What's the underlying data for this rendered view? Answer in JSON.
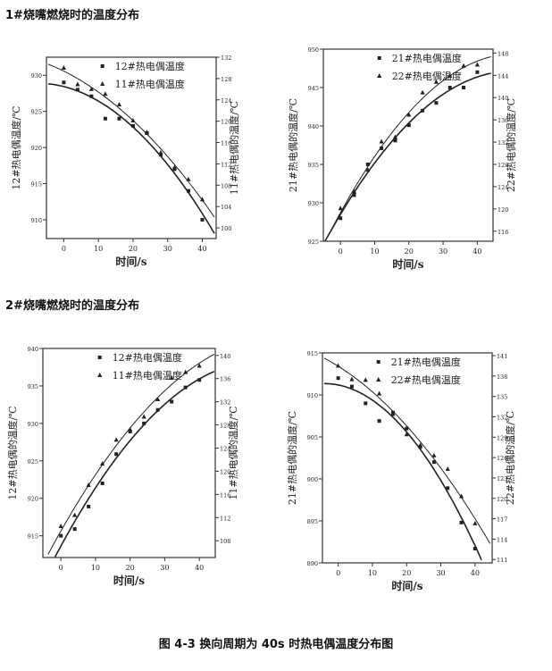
{
  "section1_title": "1#烧嘴燃烧时的温度分布",
  "section2_title": "2#烧嘴燃烧时的温度分布",
  "caption": "图 4-3   换向周期为 40s 时热电偶温度分布图",
  "chart_data": [
    {
      "type": "scatter",
      "xlabel": "时间/s",
      "ylabel": "12#热电偶温度/℃",
      "ylabel_right": "11#热电偶的温度/℃",
      "xlim": [
        -5,
        44
      ],
      "xticks": [
        0,
        10,
        20,
        30,
        40
      ],
      "ylim": [
        907.4,
        932.5
      ],
      "yticks": [
        910,
        915,
        920,
        925,
        930
      ],
      "ylim_right": [
        98,
        132
      ],
      "yticks_right": [
        100,
        104,
        108,
        112,
        116,
        120,
        124,
        128,
        132
      ],
      "fit": "quadratic trend line",
      "x": [
        0,
        4,
        8,
        12,
        16,
        20,
        24,
        28,
        32,
        36,
        40
      ],
      "series": [
        {
          "name": "12#热电偶温度",
          "marker": "square",
          "axis": "left",
          "values": [
            929.0,
            928.0,
            927.1,
            924.0,
            924.0,
            923.0,
            922.0,
            919.0,
            917.0,
            914.0,
            910.0
          ]
        },
        {
          "name": "11#热电偶温度",
          "marker": "triangle",
          "axis": "right",
          "values": [
            130.0,
            126.9,
            126.0,
            125.1,
            123.1,
            120.1,
            117.9,
            114.1,
            111.3,
            109.1,
            105.3
          ]
        }
      ]
    },
    {
      "type": "scatter",
      "xlabel": "时间/s",
      "ylabel": "21#热电偶的温度/℃",
      "ylabel_right": "22#热电偶的温度/℃",
      "xlim": [
        -5,
        44.6
      ],
      "xticks": [
        0,
        10,
        20,
        30,
        40
      ],
      "ylim": [
        925,
        950
      ],
      "yticks": [
        925,
        930,
        935,
        940,
        945,
        950
      ],
      "ylim_right": [
        114.2,
        148.7
      ],
      "yticks_right": [
        116,
        120,
        124,
        128,
        132,
        136,
        140,
        144,
        148
      ],
      "fit": "quadratic trend line",
      "x": [
        0,
        4,
        8,
        12,
        16,
        20,
        24,
        28,
        32,
        36,
        40
      ],
      "series": [
        {
          "name": "21#热电偶温度",
          "marker": "square",
          "axis": "left",
          "values": [
            928.0,
            931.0,
            935.0,
            937.1,
            938.1,
            940.1,
            942.0,
            943.0,
            945.0,
            945.0,
            947.0
          ]
        },
        {
          "name": "22#热电偶温度",
          "marker": "triangle",
          "axis": "right",
          "values": [
            120.1,
            123.1,
            127.0,
            132.1,
            132.9,
            136.9,
            140.9,
            142.8,
            143.9,
            145.7,
            145.9
          ]
        }
      ]
    },
    {
      "type": "scatter",
      "xlabel": "时间/s",
      "ylabel": "12#热电偶的温度/℃",
      "ylabel_right": "11#热电偶的温度/℃",
      "xlim": [
        -5.2,
        44.6
      ],
      "xticks": [
        0,
        10,
        20,
        30,
        40
      ],
      "ylim": [
        912.1,
        940
      ],
      "yticks": [
        915,
        920,
        925,
        930,
        935,
        940
      ],
      "ylim_right": [
        105.1,
        141.2
      ],
      "yticks_right": [
        108,
        112,
        116,
        120,
        124,
        128,
        132,
        136,
        140
      ],
      "fit": "quadratic trend line",
      "x": [
        0,
        4,
        8,
        12,
        16,
        20,
        24,
        28,
        32,
        36,
        40
      ],
      "series": [
        {
          "name": "12#热电偶温度",
          "marker": "square",
          "axis": "left",
          "values": [
            915.0,
            915.9,
            918.9,
            922.0,
            925.9,
            928.9,
            930.0,
            931.8,
            932.9,
            934.8,
            935.8
          ]
        },
        {
          "name": "11#热电偶温度",
          "marker": "triangle",
          "axis": "right",
          "values": [
            110.5,
            112.4,
            117.6,
            121.3,
            125.4,
            127.2,
            129.4,
            132.4,
            136.1,
            137.1,
            138.2
          ]
        }
      ]
    },
    {
      "type": "scatter",
      "xlabel": "时间/s",
      "ylabel": "21#热电偶的温度/℃",
      "ylabel_right": "22#热电偶的温度/℃",
      "xlim": [
        -4.6,
        45
      ],
      "xticks": [
        0,
        10,
        20,
        30,
        40
      ],
      "ylim": [
        890,
        915
      ],
      "yticks": [
        890,
        895,
        900,
        905,
        910,
        915
      ],
      "ylim_right": [
        110.5,
        141.4
      ],
      "yticks_right": [
        111,
        114,
        117,
        120,
        123,
        126,
        129,
        132,
        135,
        138,
        141
      ],
      "fit": "quadratic trend line",
      "x": [
        0,
        4,
        8,
        12,
        16,
        20,
        24,
        28,
        32,
        36,
        40
      ],
      "series": [
        {
          "name": "21#热电偶温度",
          "marker": "square",
          "axis": "left",
          "values": [
            912.0,
            911.0,
            909.0,
            906.9,
            907.9,
            906.0,
            903.8,
            902.0,
            898.9,
            894.8,
            891.7
          ]
        },
        {
          "name": "22#热电偶温度",
          "marker": "triangle",
          "axis": "right",
          "values": [
            139.5,
            137.5,
            137.4,
            135.4,
            132.4,
            129.4,
            127.8,
            126.3,
            124.3,
            120.3,
            116.3
          ]
        }
      ]
    }
  ]
}
